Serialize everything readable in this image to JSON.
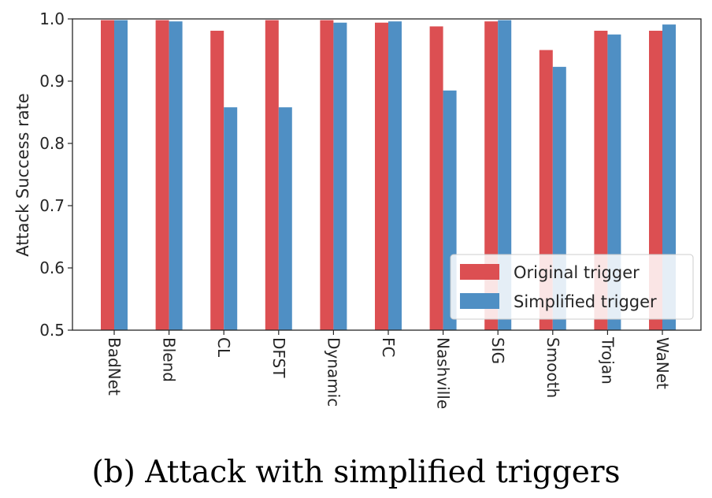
{
  "chart_data": {
    "type": "bar",
    "title": "",
    "xlabel": "",
    "ylabel": "Attack Success rate",
    "ylim": [
      0.5,
      1.0
    ],
    "yticks": [
      "0.5",
      "0.6",
      "0.7",
      "0.8",
      "0.9",
      "1.0"
    ],
    "categories": [
      "BadNet",
      "Blend",
      "CL",
      "DFST",
      "Dynamic",
      "FC",
      "Nashville",
      "SIG",
      "Smooth",
      "Trojan",
      "WaNet"
    ],
    "series": [
      {
        "name": "Original trigger",
        "color": "#dc4f52",
        "values": [
          0.998,
          0.998,
          0.981,
          0.998,
          0.998,
          0.994,
          0.988,
          0.996,
          0.95,
          0.981,
          0.981
        ]
      },
      {
        "name": "Simplified trigger",
        "color": "#4f8fc4",
        "values": [
          0.998,
          0.996,
          0.858,
          0.858,
          0.994,
          0.996,
          0.885,
          0.998,
          0.923,
          0.975,
          0.991
        ]
      }
    ],
    "grid": false,
    "legend": "bottom-right"
  },
  "caption": "(b) Attack with simplified triggers"
}
